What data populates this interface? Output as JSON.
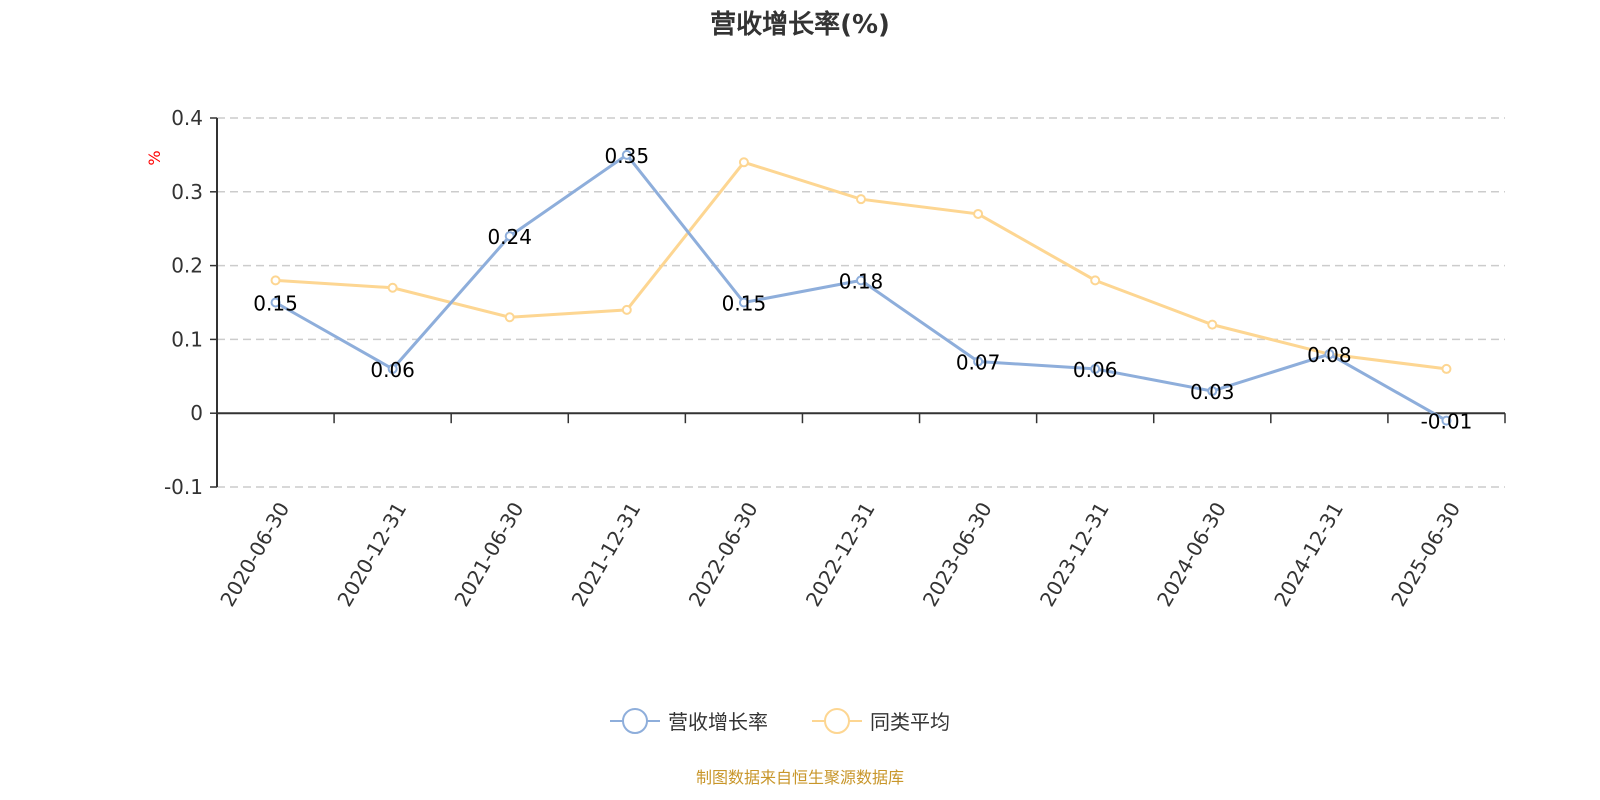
{
  "title": "营收增长率(%)",
  "source": "制图数据来自恒生聚源数据库",
  "chart_data": {
    "type": "line",
    "title": "营收增长率(%)",
    "ylabel": "%",
    "ylim": [
      -0.1,
      0.4
    ],
    "yticks": [
      -0.1,
      0,
      0.1,
      0.2,
      0.3,
      0.4
    ],
    "grid": true,
    "legend_position": "bottom",
    "categories": [
      "2020-06-30",
      "2020-12-31",
      "2021-06-30",
      "2021-12-31",
      "2022-06-30",
      "2022-12-31",
      "2023-06-30",
      "2023-12-31",
      "2024-06-30",
      "2024-12-31",
      "2025-06-30"
    ],
    "series": [
      {
        "name": "营收增长率",
        "color": "#8eaedb",
        "values": [
          0.15,
          0.06,
          0.24,
          0.35,
          0.15,
          0.18,
          0.07,
          0.06,
          0.03,
          0.08,
          -0.01
        ],
        "labels": true
      },
      {
        "name": "同类平均",
        "color": "#fdd692",
        "values": [
          0.18,
          0.17,
          0.13,
          0.14,
          0.34,
          0.29,
          0.27,
          0.18,
          0.12,
          0.08,
          0.06
        ],
        "labels": false
      }
    ]
  }
}
